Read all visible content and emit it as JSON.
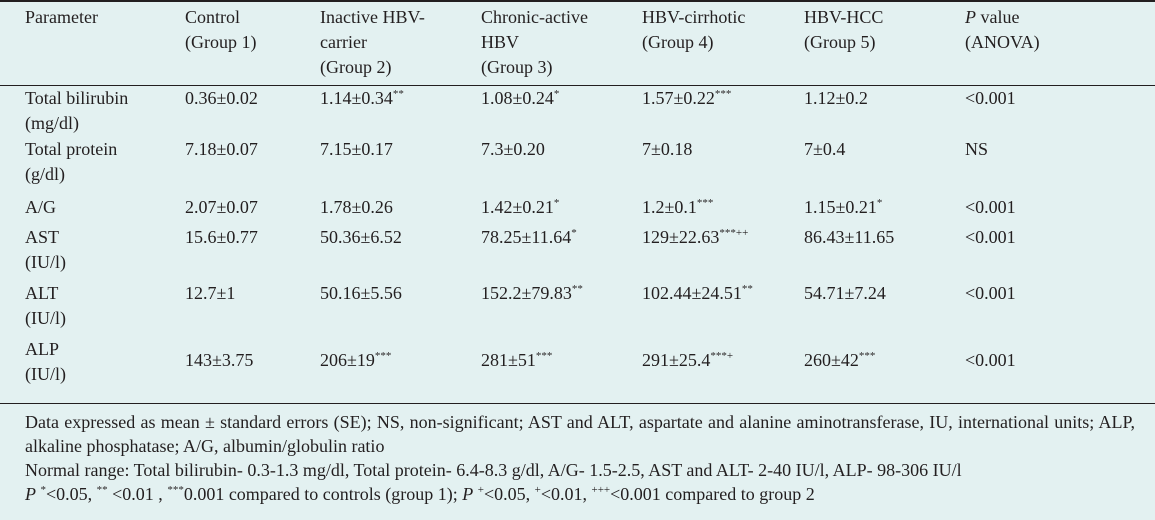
{
  "header": {
    "parameter": "Parameter",
    "groups": [
      {
        "line1": "Control",
        "line2": "(Group 1)",
        "line3": ""
      },
      {
        "line1": "Inactive HBV-",
        "line2": "carrier",
        "line3": "(Group 2)"
      },
      {
        "line1": "Chronic-active",
        "line2": "HBV",
        "line3": "(Group 3)"
      },
      {
        "line1": "HBV-cirrhotic",
        "line2": "(Group 4)",
        "line3": ""
      },
      {
        "line1": "HBV-HCC",
        "line2": "(Group 5)",
        "line3": ""
      }
    ],
    "pvalue_p": "P",
    "pvalue_rest": " value",
    "pvalue_line2": "(ANOVA)"
  },
  "rows": [
    {
      "name1": "Total bilirubin",
      "name2": "(mg/dl)",
      "cells": [
        {
          "v": "0.36±0.02",
          "s": ""
        },
        {
          "v": "1.14±0.34",
          "s": "**"
        },
        {
          "v": "1.08±0.24",
          "s": "*"
        },
        {
          "v": "1.57±0.22",
          "s": "***"
        },
        {
          "v": "1.12±0.2",
          "s": ""
        }
      ],
      "p": "<0.001"
    },
    {
      "name1": "Total protein",
      "name2": "(g/dl)",
      "cells": [
        {
          "v": "7.18±0.07",
          "s": ""
        },
        {
          "v": "7.15±0.17",
          "s": ""
        },
        {
          "v": "7.3±0.20",
          "s": ""
        },
        {
          "v": "7±0.18",
          "s": ""
        },
        {
          "v": "7±0.4",
          "s": ""
        }
      ],
      "p": "NS"
    },
    {
      "name1": "A/G",
      "name2": "",
      "cells": [
        {
          "v": "2.07±0.07",
          "s": ""
        },
        {
          "v": "1.78±0.26",
          "s": ""
        },
        {
          "v": "1.42±0.21",
          "s": "*"
        },
        {
          "v": "1.2±0.1",
          "s": "***"
        },
        {
          "v": "1.15±0.21",
          "s": "*"
        }
      ],
      "p": "<0.001"
    },
    {
      "name1": "AST",
      "name2": "(IU/l)",
      "cells": [
        {
          "v": "15.6±0.77",
          "s": ""
        },
        {
          "v": "50.36±6.52",
          "s": ""
        },
        {
          "v": "78.25±11.64",
          "s": "*"
        },
        {
          "v": "129±22.63",
          "s": "***++"
        },
        {
          "v": "86.43±11.65",
          "s": ""
        }
      ],
      "p": "<0.001"
    },
    {
      "name1": "ALT",
      "name2": "(IU/l)",
      "cells": [
        {
          "v": "12.7±1",
          "s": ""
        },
        {
          "v": "50.16±5.56",
          "s": ""
        },
        {
          "v": "152.2±79.83",
          "s": "**"
        },
        {
          "v": "102.44±24.51",
          "s": "**"
        },
        {
          "v": "54.71±7.24",
          "s": ""
        }
      ],
      "p": "<0.001"
    },
    {
      "name1": "ALP",
      "name2": "(IU/l)",
      "cells": [
        {
          "v": "143±3.75",
          "s": ""
        },
        {
          "v": "206±19",
          "s": "***"
        },
        {
          "v": "281±51",
          "s": "***"
        },
        {
          "v": "291±25.4",
          "s": "***+"
        },
        {
          "v": "260±42",
          "s": "***"
        }
      ],
      "p": "<0.001"
    }
  ],
  "footnotes": {
    "note1": "Data expressed as mean ± standard errors (SE); NS, non-significant; AST and ALT, aspartate and alanine aminotransferase, IU, international units; ALP, alkaline phosphatase; A/G, albumin/globulin ratio",
    "note2": "Normal range: Total bilirubin- 0.3-1.3 mg/dl, Total protein- 6.4-8.3 g/dl, A/G- 1.5-2.5, AST and ALT- 2-40 IU/l, ALP- 98-306 IU/l",
    "note3": {
      "p1": "P",
      "s1": "*",
      "t1": "<0.05, ",
      "s2": "**",
      "t2": " <0.01 , ",
      "s3": "***",
      "t3": "0.001 compared to controls (group 1); ",
      "p2": "P",
      "t4": " ",
      "s4": "+",
      "t5": "<0.05, ",
      "s5": "+",
      "t6": "<0.01, ",
      "s6": "+++",
      "t7": "<0.001 compared to group 2"
    }
  }
}
